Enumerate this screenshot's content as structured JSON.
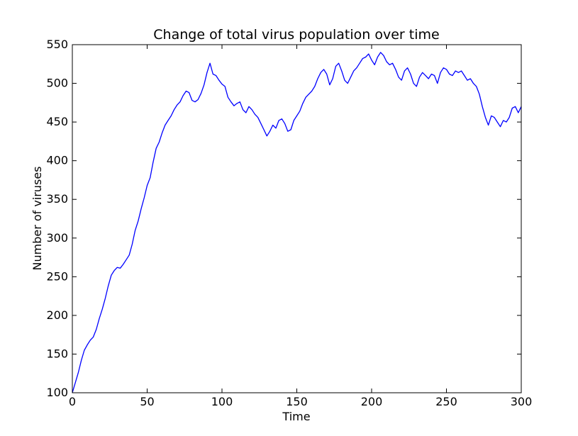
{
  "chart_data": {
    "type": "line",
    "title": "Change of total virus population over time",
    "xlabel": "Time",
    "ylabel": "Number of viruses",
    "xlim": [
      0,
      300
    ],
    "ylim": [
      100,
      550
    ],
    "xticks": [
      "0",
      "50",
      "100",
      "150",
      "200",
      "250",
      "300"
    ],
    "yticks": [
      "100",
      "150",
      "200",
      "250",
      "300",
      "350",
      "400",
      "450",
      "500",
      "550"
    ],
    "grid": false,
    "series": [
      {
        "color": "#0000ff",
        "x": [
          0,
          2,
          4,
          6,
          8,
          10,
          12,
          14,
          16,
          18,
          20,
          22,
          24,
          26,
          28,
          30,
          32,
          34,
          36,
          38,
          40,
          42,
          44,
          46,
          48,
          50,
          52,
          54,
          56,
          58,
          60,
          62,
          64,
          66,
          68,
          70,
          72,
          74,
          76,
          78,
          80,
          82,
          84,
          86,
          88,
          90,
          92,
          94,
          96,
          98,
          100,
          102,
          104,
          106,
          108,
          110,
          112,
          114,
          116,
          118,
          120,
          122,
          124,
          126,
          128,
          130,
          132,
          134,
          136,
          138,
          140,
          142,
          144,
          146,
          148,
          150,
          152,
          154,
          156,
          158,
          160,
          162,
          164,
          166,
          168,
          170,
          172,
          174,
          176,
          178,
          180,
          182,
          184,
          186,
          188,
          190,
          192,
          194,
          196,
          198,
          200,
          202,
          204,
          206,
          208,
          210,
          212,
          214,
          216,
          218,
          220,
          222,
          224,
          226,
          228,
          230,
          232,
          234,
          236,
          238,
          240,
          242,
          244,
          246,
          248,
          250,
          252,
          254,
          256,
          258,
          260,
          262,
          264,
          266,
          268,
          270,
          272,
          274,
          276,
          278,
          280,
          282,
          284,
          286,
          288,
          290,
          292,
          294,
          296,
          298,
          300
        ],
        "values": [
          100,
          113,
          126,
          142,
          155,
          162,
          168,
          172,
          182,
          196,
          208,
          222,
          238,
          252,
          258,
          262,
          261,
          266,
          272,
          278,
          292,
          310,
          322,
          338,
          352,
          368,
          378,
          398,
          416,
          424,
          436,
          446,
          452,
          458,
          466,
          472,
          476,
          484,
          490,
          488,
          478,
          476,
          479,
          487,
          498,
          514,
          526,
          512,
          510,
          504,
          499,
          496,
          482,
          476,
          471,
          474,
          476,
          466,
          462,
          470,
          466,
          460,
          456,
          448,
          440,
          432,
          438,
          446,
          442,
          452,
          454,
          448,
          438,
          440,
          452,
          458,
          464,
          474,
          482,
          486,
          490,
          496,
          506,
          514,
          518,
          512,
          498,
          506,
          522,
          526,
          516,
          504,
          500,
          508,
          516,
          520,
          526,
          532,
          534,
          538,
          530,
          524,
          534,
          540,
          536,
          528,
          524,
          526,
          518,
          508,
          504,
          516,
          520,
          512,
          500,
          496,
          508,
          514,
          510,
          506,
          512,
          510,
          500,
          514,
          520,
          518,
          512,
          510,
          516,
          514,
          516,
          510,
          504,
          506,
          500,
          496,
          486,
          470,
          456,
          446,
          458,
          456,
          450,
          444,
          452,
          450,
          456,
          468,
          470,
          462,
          470
        ]
      }
    ]
  }
}
